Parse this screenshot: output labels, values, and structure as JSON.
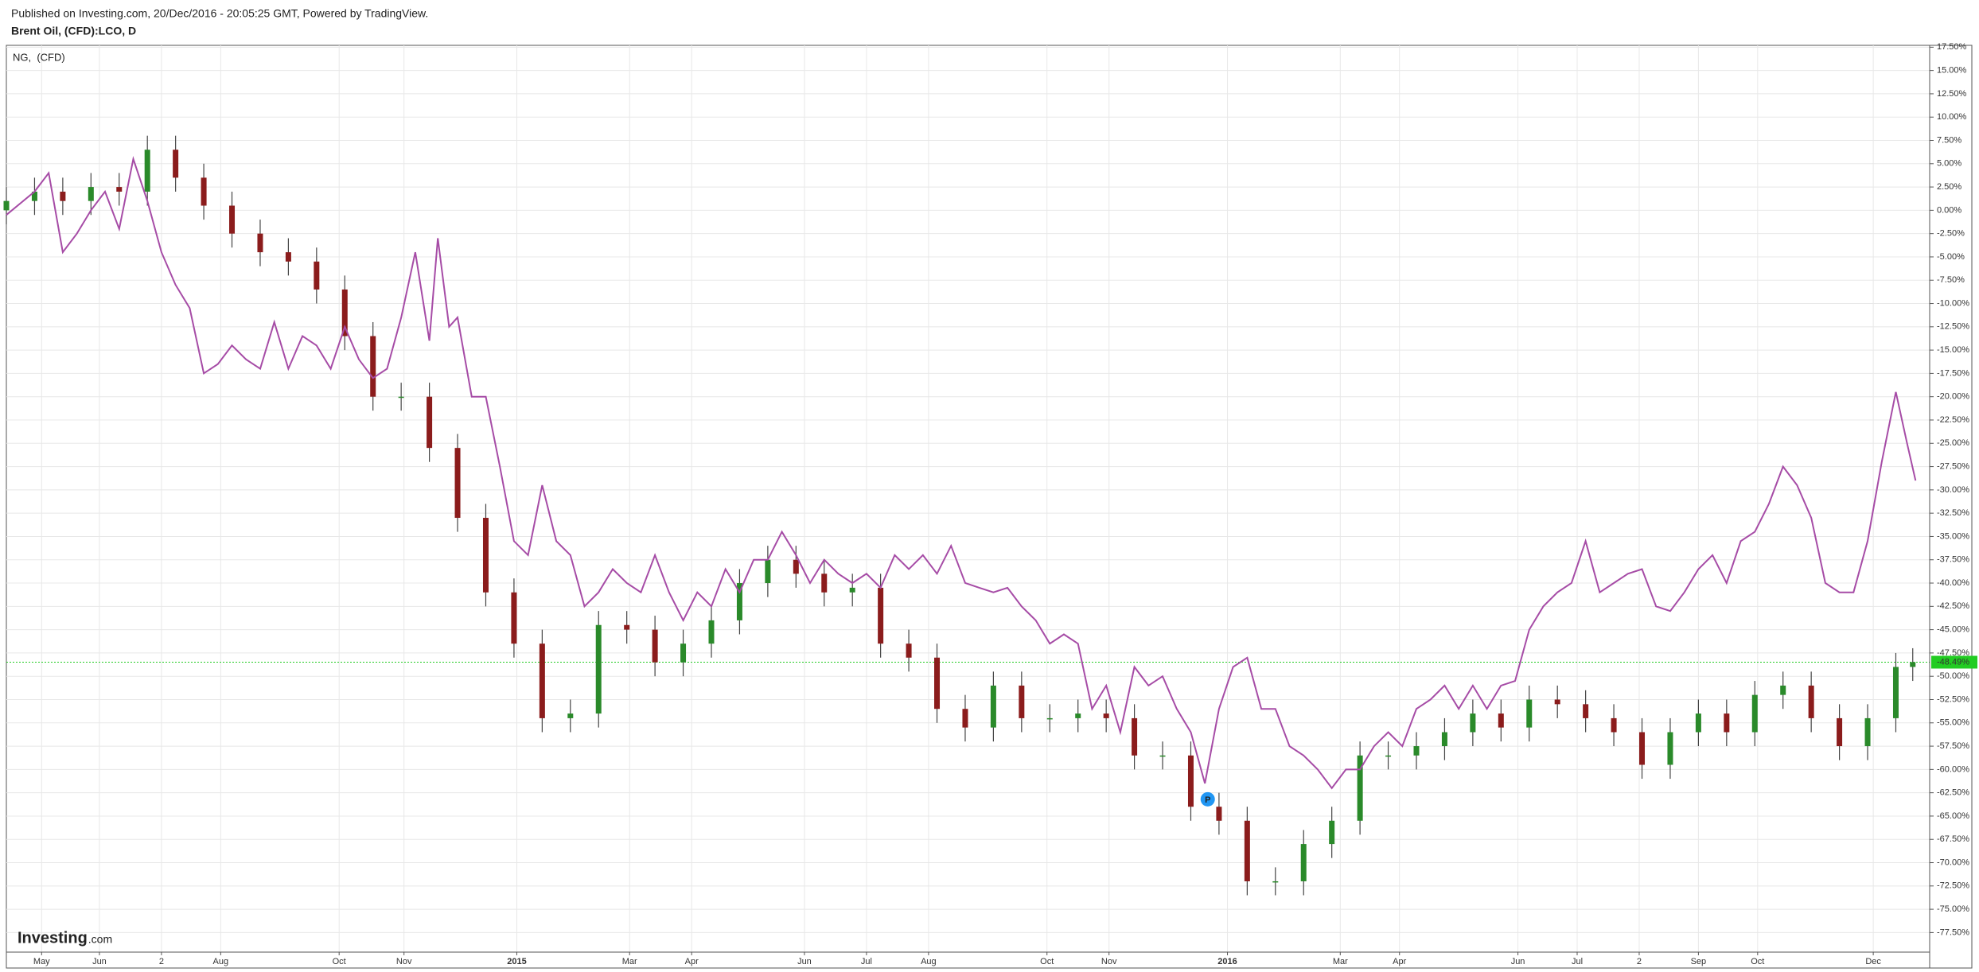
{
  "chart_data": {
    "type": "candlestick",
    "source": "Published on Investing.com, 20/Dec/2016 - 20:05:25 GMT, Powered by TradingView.",
    "title": "Brent Oil, (CFD):LCO, D",
    "logo": {
      "name": "Investing",
      "suffix": ".com"
    },
    "grid": true,
    "xlim": [
      0,
      682
    ],
    "ylim": [
      -79.6,
      17.7
    ],
    "xticks": [
      {
        "value": 12.5,
        "label": "May"
      },
      {
        "value": 33,
        "label": "Jun"
      },
      {
        "value": 55,
        "label": "2"
      },
      {
        "value": 76,
        "label": "Aug"
      },
      {
        "value": 118,
        "label": "Oct"
      },
      {
        "value": 141,
        "label": "Nov"
      },
      {
        "value": 181,
        "label": "2015"
      },
      {
        "value": 221,
        "label": "Mar"
      },
      {
        "value": 243,
        "label": "Apr"
      },
      {
        "value": 283,
        "label": "Jun"
      },
      {
        "value": 305,
        "label": "Jul"
      },
      {
        "value": 327,
        "label": "Aug"
      },
      {
        "value": 369,
        "label": "Oct"
      },
      {
        "value": 391,
        "label": "Nov"
      },
      {
        "value": 433,
        "label": "2016"
      },
      {
        "value": 473,
        "label": "Mar"
      },
      {
        "value": 494,
        "label": "Apr"
      },
      {
        "value": 536,
        "label": "Jun"
      },
      {
        "value": 557,
        "label": "Jul"
      },
      {
        "value": 579,
        "label": "2"
      },
      {
        "value": 600,
        "label": "Sep"
      },
      {
        "value": 621,
        "label": "Oct"
      },
      {
        "value": 662,
        "label": "Dec"
      }
    ],
    "yticks": [
      {
        "value": 17.5,
        "label": "17.50%"
      },
      {
        "value": 15,
        "label": "15.00%"
      },
      {
        "value": 12.5,
        "label": "12.50%"
      },
      {
        "value": 10,
        "label": "10.00%"
      },
      {
        "value": 7.5,
        "label": "7.50%"
      },
      {
        "value": 5,
        "label": "5.00%"
      },
      {
        "value": 2.5,
        "label": "2.50%"
      },
      {
        "value": 0,
        "label": "0.00%"
      },
      {
        "value": -2.5,
        "label": "-2.50%"
      },
      {
        "value": -5,
        "label": "-5.00%"
      },
      {
        "value": -7.5,
        "label": "-7.50%"
      },
      {
        "value": -10,
        "label": "-10.00%"
      },
      {
        "value": -12.5,
        "label": "-12.50%"
      },
      {
        "value": -15,
        "label": "-15.00%"
      },
      {
        "value": -17.5,
        "label": "-17.50%"
      },
      {
        "value": -20,
        "label": "-20.00%"
      },
      {
        "value": -22.5,
        "label": "-22.50%"
      },
      {
        "value": -25,
        "label": "-25.00%"
      },
      {
        "value": -27.5,
        "label": "-27.50%"
      },
      {
        "value": -30,
        "label": "-30.00%"
      },
      {
        "value": -32.5,
        "label": "-32.50%"
      },
      {
        "value": -35,
        "label": "-35.00%"
      },
      {
        "value": -37.5,
        "label": "-37.50%"
      },
      {
        "value": -40,
        "label": "-40.00%"
      },
      {
        "value": -42.5,
        "label": "-42.50%"
      },
      {
        "value": -45,
        "label": "-45.00%"
      },
      {
        "value": -47.5,
        "label": "-47.50%"
      },
      {
        "value": -50,
        "label": "-50.00%"
      },
      {
        "value": -52.5,
        "label": "-52.50%"
      },
      {
        "value": -55,
        "label": "-55.00%"
      },
      {
        "value": -57.5,
        "label": "-57.50%"
      },
      {
        "value": -60,
        "label": "-60.00%"
      },
      {
        "value": -62.5,
        "label": "-62.50%"
      },
      {
        "value": -65,
        "label": "-65.00%"
      },
      {
        "value": -67.5,
        "label": "-67.50%"
      },
      {
        "value": -70,
        "label": "-70.00%"
      },
      {
        "value": -72.5,
        "label": "-72.50%"
      },
      {
        "value": -75,
        "label": "-75.00%"
      },
      {
        "value": -77.5,
        "label": "-77.50%"
      }
    ],
    "price_line": {
      "value": -48.49,
      "label": "-48.49%",
      "color": "#22cc22"
    },
    "marker": {
      "label": "P",
      "x": 426,
      "y": -63.2,
      "color": "#2196f3"
    },
    "series": [
      {
        "type": "candlestick",
        "up_color": "#2a8a2a",
        "down_color": "#8b1c1c",
        "wick_color": "#444444",
        "x": [
          0,
          10,
          20,
          30,
          40,
          50,
          60,
          70,
          80,
          90,
          100,
          110,
          120,
          130,
          140,
          150,
          160,
          170,
          180,
          190,
          200,
          210,
          220,
          230,
          240,
          250,
          260,
          270,
          280,
          290,
          300,
          310,
          320,
          330,
          340,
          350,
          360,
          370,
          380,
          390,
          400,
          410,
          420,
          430,
          440,
          450,
          460,
          470,
          480,
          490,
          500,
          510,
          520,
          530,
          540,
          550,
          560,
          570,
          580,
          590,
          600,
          610,
          620,
          630,
          640,
          650,
          660,
          670,
          676
        ],
        "open": [
          0,
          1,
          2,
          1,
          2.5,
          2,
          6.5,
          3.5,
          0.5,
          -2.5,
          -4.5,
          -5.5,
          -8.5,
          -13.5,
          -20,
          -20,
          -25.5,
          -33,
          -41,
          -46.5,
          -54.5,
          -54,
          -44.5,
          -45,
          -48.5,
          -46.5,
          -44,
          -40,
          -37.5,
          -39,
          -41,
          -40.5,
          -46.5,
          -48,
          -53.5,
          -55.5,
          -51,
          -54.5,
          -54.5,
          -54,
          -54.5,
          -58.5,
          -58.5,
          -64,
          -65.5,
          -72,
          -72,
          -68,
          -65.5,
          -58.5,
          -58.5,
          -57.5,
          -56,
          -54,
          -55.5,
          -52.5,
          -53,
          -54.5,
          -56,
          -59.5,
          -56,
          -54,
          -56,
          -52,
          -51,
          -54.5,
          -57.5,
          -54.5,
          -49
        ],
        "high": [
          2.5,
          3.5,
          3.5,
          4,
          4,
          8,
          8,
          5,
          2,
          -1,
          -3,
          -4,
          -7,
          -12,
          -18.5,
          -18.5,
          -24,
          -31.5,
          -39.5,
          -45,
          -52.5,
          -43,
          -43,
          -43.5,
          -45,
          -42.5,
          -38.5,
          -36,
          -36,
          -37.5,
          -39,
          -39,
          -45,
          -46.5,
          -52,
          -49.5,
          -49.5,
          -53,
          -52.5,
          -52.5,
          -53,
          -57,
          -57,
          -62.5,
          -64,
          -70.5,
          -66.5,
          -64,
          -57,
          -57,
          -56,
          -54.5,
          -52.5,
          -52.5,
          -51,
          -51,
          -51.5,
          -53,
          -54.5,
          -54.5,
          -52.5,
          -52.5,
          -50.5,
          -49.5,
          -49.5,
          -53,
          -53,
          -47.5,
          -46.99
        ],
        "low": [
          -1.5,
          -0.5,
          -0.5,
          -0.5,
          0.5,
          0.5,
          2,
          -1,
          -4,
          -6,
          -7,
          -10,
          -15,
          -21.5,
          -21.5,
          -27,
          -34.5,
          -42.5,
          -48,
          -56,
          -56,
          -55.5,
          -46.5,
          -50,
          -50,
          -48,
          -45.5,
          -41.5,
          -40.5,
          -42.5,
          -42.5,
          -48,
          -49.5,
          -55,
          -57,
          -57,
          -56,
          -56,
          -56,
          -56,
          -60,
          -60,
          -65.5,
          -67,
          -73.5,
          -73.5,
          -73.5,
          -69.5,
          -67,
          -60,
          -60,
          -59,
          -57.5,
          -57,
          -57,
          -54.5,
          -56,
          -57.5,
          -61,
          -61,
          -57.5,
          -57.5,
          -57.5,
          -53.5,
          -56,
          -59,
          -59,
          -56,
          -50.5
        ],
        "close": [
          1,
          2,
          1,
          2.5,
          2,
          6.5,
          3.5,
          0.5,
          -2.5,
          -4.5,
          -5.5,
          -8.5,
          -13.5,
          -20,
          -20,
          -25.5,
          -33,
          -41,
          -46.5,
          -54.5,
          -54,
          -44.5,
          -45,
          -48.5,
          -46.5,
          -44,
          -40,
          -37.5,
          -39,
          -41,
          -40.5,
          -46.5,
          -48,
          -53.5,
          -55.5,
          -51,
          -54.5,
          -54.5,
          -54,
          -54.5,
          -58.5,
          -58.5,
          -64,
          -65.5,
          -72,
          -72,
          -68,
          -65.5,
          -58.5,
          -58.5,
          -57.5,
          -56,
          -54,
          -55.5,
          -52.5,
          -53,
          -54.5,
          -56,
          -59.5,
          -56,
          -54,
          -56,
          -52,
          -51,
          -54.5,
          -57.5,
          -54.5,
          -49,
          -48.49
        ]
      },
      {
        "type": "line",
        "name": "NG,  (CFD)",
        "color": "#a64ca6",
        "x": [
          0,
          10,
          15,
          20,
          25,
          30,
          35,
          40,
          45,
          50,
          55,
          60,
          65,
          70,
          75,
          80,
          85,
          90,
          95,
          100,
          105,
          110,
          115,
          120,
          125,
          130,
          135,
          140,
          145,
          150,
          153,
          157,
          160,
          165,
          170,
          175,
          180,
          185,
          190,
          195,
          200,
          205,
          210,
          215,
          220,
          225,
          230,
          235,
          240,
          245,
          250,
          255,
          260,
          265,
          270,
          275,
          280,
          285,
          290,
          295,
          300,
          305,
          310,
          315,
          320,
          325,
          330,
          335,
          340,
          345,
          350,
          355,
          360,
          365,
          370,
          375,
          380,
          385,
          390,
          395,
          400,
          405,
          410,
          415,
          420,
          425,
          430,
          435,
          440,
          445,
          450,
          455,
          460,
          465,
          470,
          475,
          480,
          485,
          490,
          495,
          500,
          505,
          510,
          515,
          520,
          525,
          530,
          535,
          540,
          545,
          550,
          555,
          560,
          565,
          570,
          575,
          580,
          585,
          590,
          595,
          600,
          605,
          610,
          615,
          620,
          625,
          630,
          635,
          640,
          645,
          650,
          655,
          660,
          665,
          670,
          674,
          677
        ],
        "values": [
          -0.5,
          2,
          4,
          -4.5,
          -2.5,
          0,
          2,
          -2,
          5.5,
          1,
          -4.5,
          -8,
          -10.5,
          -17.5,
          -16.5,
          -14.5,
          -16,
          -17,
          -12,
          -17,
          -13.5,
          -14.5,
          -17,
          -12.5,
          -16,
          -18,
          -17,
          -11.5,
          -4.5,
          -14,
          -3,
          -12.5,
          -11.5,
          -20,
          -20,
          -27.5,
          -35.5,
          -37,
          -29.5,
          -35.5,
          -37,
          -42.5,
          -41,
          -38.5,
          -40,
          -41,
          -37,
          -41,
          -44,
          -41,
          -42.5,
          -38.5,
          -41,
          -37.5,
          -37.5,
          -34.5,
          -37,
          -40,
          -37.5,
          -39,
          -40,
          -39,
          -40.5,
          -37,
          -38.5,
          -37,
          -39,
          -36,
          -40,
          -40.5,
          -41,
          -40.5,
          -42.5,
          -44,
          -46.5,
          -45.5,
          -46.5,
          -53.5,
          -51,
          -56,
          -49,
          -51,
          -50,
          -53.5,
          -56,
          -61.5,
          -53.5,
          -49,
          -48,
          -53.5,
          -53.5,
          -57.5,
          -58.5,
          -60,
          -62,
          -60,
          -60,
          -57.5,
          -56,
          -57.5,
          -53.5,
          -52.5,
          -51,
          -53.5,
          -51,
          -53.5,
          -51,
          -50.5,
          -45,
          -42.5,
          -41,
          -40,
          -35.5,
          -41,
          -40,
          -39,
          -38.5,
          -42.5,
          -43,
          -41,
          -38.5,
          -37,
          -40,
          -35.5,
          -34.5,
          -31.5,
          -27.5,
          -29.5,
          -33,
          -40,
          -41,
          -41,
          -35.5,
          -27,
          -19.5,
          -25,
          -29
        ]
      }
    ]
  }
}
